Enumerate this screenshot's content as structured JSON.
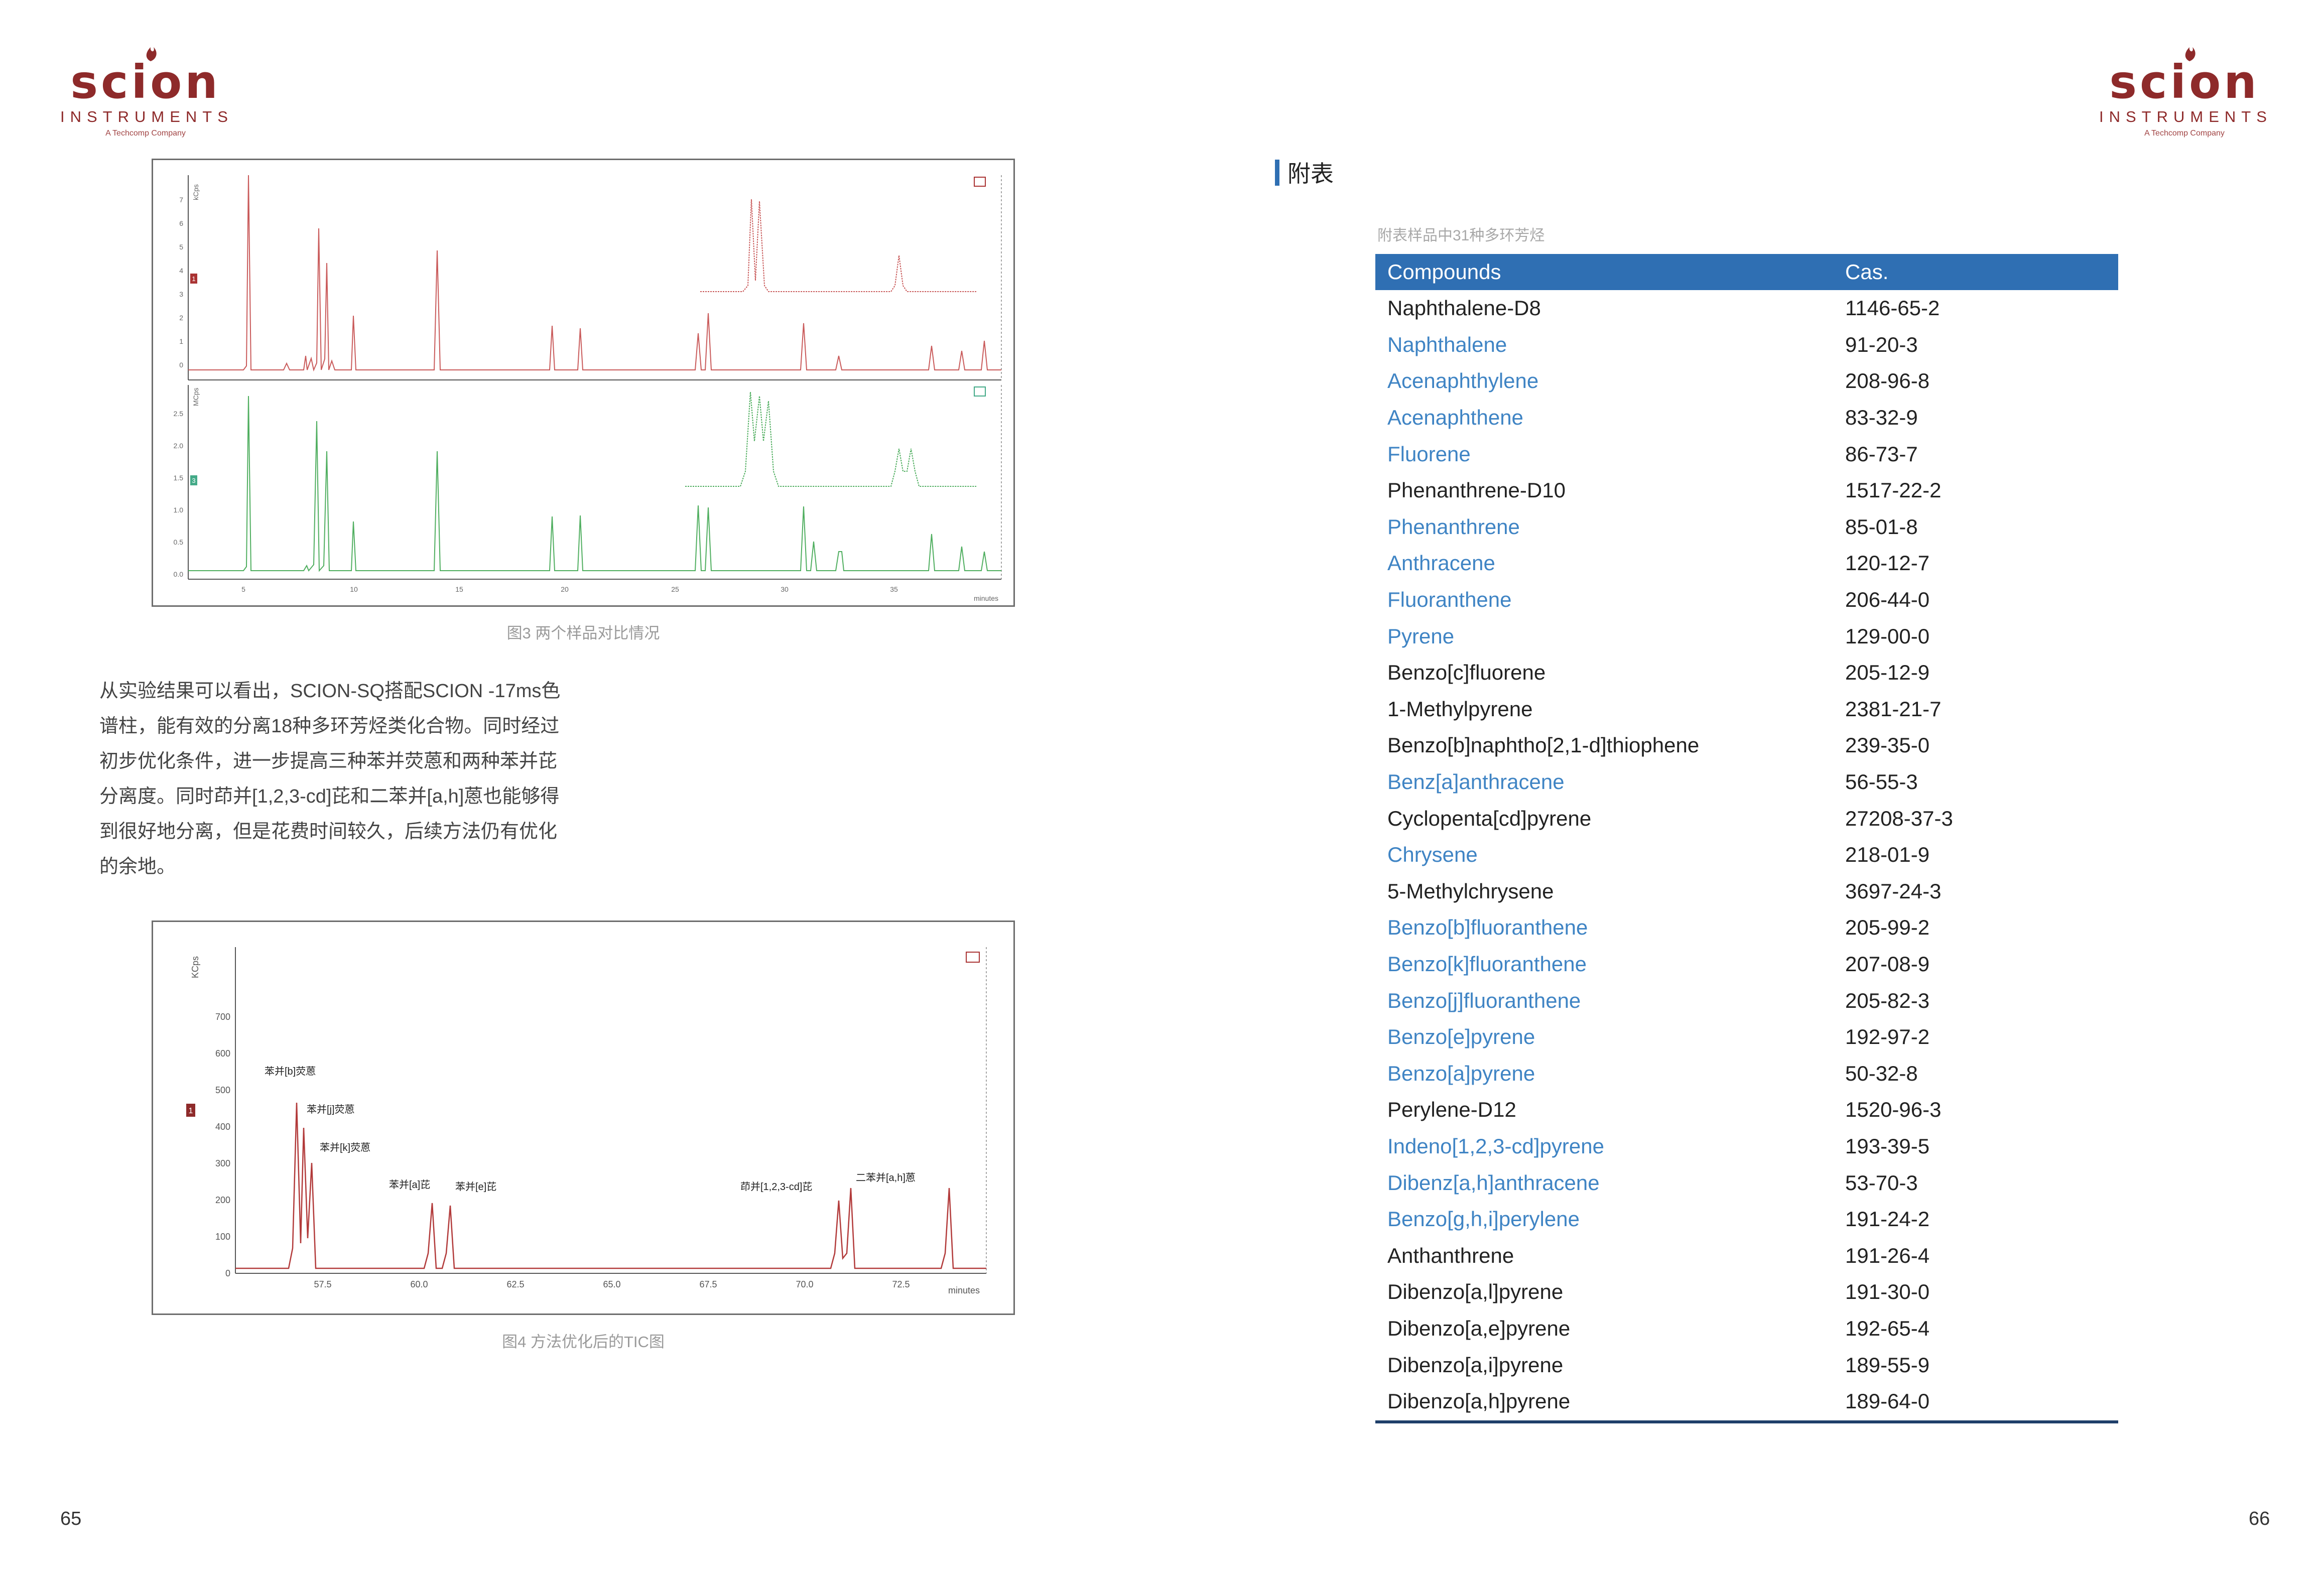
{
  "logo": {
    "wordmark": "scion",
    "subtitle": "INSTRUMENTS",
    "tagline": "A Techcomp Company",
    "brand_color": "#8e2a2a"
  },
  "left_page": {
    "figure3": {
      "caption": "图3 两个样品对比情况",
      "top_panel": {
        "ylabel": "kCps",
        "yticks": [
          "0",
          "1",
          "2",
          "3",
          "4",
          "5",
          "6",
          "7"
        ],
        "series_color": "#c95a5a",
        "marker": "1",
        "corner_icon": "panel-icon"
      },
      "bottom_panel": {
        "ylabel": "MCps",
        "yticks": [
          "0.0",
          "0.5",
          "1.0",
          "1.5",
          "2.0",
          "2.5"
        ],
        "series_color": "#4fae5f",
        "marker": "3",
        "corner_icon": "panel-icon"
      },
      "xticks": [
        "5",
        "10",
        "15",
        "20",
        "25",
        "30",
        "35"
      ],
      "xlabel": "minutes"
    },
    "paragraph": "从实验结果可以看出，SCION-SQ搭配SCION -17ms色谱柱，能有效的分离18种多环芳烃类化合物。同时经过初步优化条件，进一步提高三种苯并荧蒽和两种苯并芘分离度。同时茚并[1,2,3-cd]芘和二苯并[a,h]蒽也能够得到很好地分离，但是花费时间较久，后续方法仍有优化的余地。",
    "figure4": {
      "caption": "图4 方法优化后的TIC图",
      "ylabel": "KCps",
      "yticks": [
        "0",
        "100",
        "200",
        "300",
        "400",
        "500",
        "600",
        "700"
      ],
      "xticks": [
        "57.5",
        "60.0",
        "62.5",
        "65.0",
        "67.5",
        "70.0",
        "72.5"
      ],
      "xlabel": "minutes",
      "marker": "1",
      "series_color": "#b23a3a",
      "peak_labels": [
        "苯并[b]荧蒽",
        "苯并[j]荧蒽",
        "苯并[k]荧蒽",
        "苯并[a]芘",
        "苯并[e]芘",
        "茚并[1,2,3-cd]芘",
        "二苯并[a,h]蒽"
      ]
    },
    "page_number": "65"
  },
  "right_page": {
    "section_title": "附表",
    "table_caption": "附表样品中31种多环芳烃",
    "header": {
      "compounds": "Compounds",
      "cas": "Cas."
    },
    "header_color": "#2f6fb3",
    "highlight_color": "#3f84c4",
    "rows": [
      {
        "compound": "Naphthalene-D8",
        "cas": "1146-65-2",
        "highlight": false
      },
      {
        "compound": "Naphthalene",
        "cas": "91-20-3",
        "highlight": true
      },
      {
        "compound": "Acenaphthylene",
        "cas": "208-96-8",
        "highlight": true
      },
      {
        "compound": "Acenaphthene",
        "cas": "83-32-9",
        "highlight": true
      },
      {
        "compound": "Fluorene",
        "cas": "86-73-7",
        "highlight": true
      },
      {
        "compound": "Phenanthrene-D10",
        "cas": "1517-22-2",
        "highlight": false
      },
      {
        "compound": "Phenanthrene",
        "cas": "85-01-8",
        "highlight": true
      },
      {
        "compound": "Anthracene",
        "cas": "120-12-7",
        "highlight": true
      },
      {
        "compound": "Fluoranthene",
        "cas": "206-44-0",
        "highlight": true
      },
      {
        "compound": "Pyrene",
        "cas": "129-00-0",
        "highlight": true
      },
      {
        "compound": "Benzo[c]fluorene",
        "cas": "205-12-9",
        "highlight": false
      },
      {
        "compound": "1-Methylpyrene",
        "cas": "2381-21-7",
        "highlight": false
      },
      {
        "compound": "Benzo[b]naphtho[2,1-d]thiophene",
        "cas": "239-35-0",
        "highlight": false
      },
      {
        "compound": "Benz[a]anthracene",
        "cas": "56-55-3",
        "highlight": true
      },
      {
        "compound": "Cyclopenta[cd]pyrene",
        "cas": "27208-37-3",
        "highlight": false
      },
      {
        "compound": "Chrysene",
        "cas": "218-01-9",
        "highlight": true
      },
      {
        "compound": "5-Methylchrysene",
        "cas": "3697-24-3",
        "highlight": false
      },
      {
        "compound": "Benzo[b]fluoranthene",
        "cas": "205-99-2",
        "highlight": true
      },
      {
        "compound": "Benzo[k]fluoranthene",
        "cas": "207-08-9",
        "highlight": true
      },
      {
        "compound": "Benzo[j]fluoranthene",
        "cas": "205-82-3",
        "highlight": true
      },
      {
        "compound": "Benzo[e]pyrene",
        "cas": "192-97-2",
        "highlight": true
      },
      {
        "compound": "Benzo[a]pyrene",
        "cas": "50-32-8",
        "highlight": true
      },
      {
        "compound": "Perylene-D12",
        "cas": "1520-96-3",
        "highlight": false
      },
      {
        "compound": "Indeno[1,2,3-cd]pyrene",
        "cas": "193-39-5",
        "highlight": true
      },
      {
        "compound": "Dibenz[a,h]anthracene",
        "cas": "53-70-3",
        "highlight": true
      },
      {
        "compound": "Benzo[g,h,i]perylene",
        "cas": "191-24-2",
        "highlight": true
      },
      {
        "compound": "Anthanthrene",
        "cas": "191-26-4",
        "highlight": false
      },
      {
        "compound": "Dibenzo[a,l]pyrene",
        "cas": "191-30-0",
        "highlight": false
      },
      {
        "compound": "Dibenzo[a,e]pyrene",
        "cas": "192-65-4",
        "highlight": false
      },
      {
        "compound": "Dibenzo[a,i]pyrene",
        "cas": "189-55-9",
        "highlight": false
      },
      {
        "compound": "Dibenzo[a,h]pyrene",
        "cas": "189-64-0",
        "highlight": false
      }
    ],
    "page_number": "66"
  }
}
